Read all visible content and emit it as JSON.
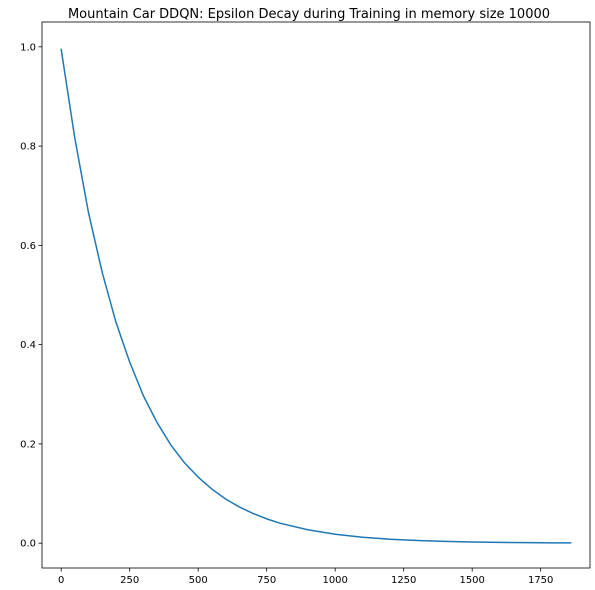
{
  "chart_data": {
    "type": "line",
    "title": "Mountain Car DDQN: Epsilon Decay during Training in memory size 10000",
    "xlabel": "",
    "ylabel": "",
    "xlim": [
      -70,
      1930
    ],
    "ylim": [
      -0.05,
      1.05
    ],
    "x_ticks": [
      0,
      250,
      500,
      750,
      1000,
      1250,
      1500,
      1750
    ],
    "x_tick_labels": [
      "0",
      "250",
      "500",
      "750",
      "1000",
      "1250",
      "1500",
      "1750"
    ],
    "y_ticks": [
      0.0,
      0.2,
      0.4,
      0.6,
      0.8,
      1.0
    ],
    "y_tick_labels": [
      "0.0",
      "0.2",
      "0.4",
      "0.6",
      "0.8",
      "1.0"
    ],
    "grid": false,
    "legend": "none",
    "line_color": "#1f77b4",
    "series": [
      {
        "x": [
          0,
          50,
          100,
          150,
          200,
          250,
          300,
          350,
          400,
          450,
          500,
          550,
          600,
          650,
          700,
          750,
          800,
          900,
          1000,
          1100,
          1200,
          1300,
          1400,
          1500,
          1600,
          1700,
          1800,
          1860
        ],
        "values": [
          0.995,
          0.815,
          0.665,
          0.545,
          0.445,
          0.365,
          0.297,
          0.243,
          0.198,
          0.162,
          0.133,
          0.109,
          0.089,
          0.073,
          0.06,
          0.049,
          0.04,
          0.027,
          0.018,
          0.012,
          0.008,
          0.0055,
          0.0037,
          0.0025,
          0.0016,
          0.0011,
          0.0007,
          0.0005
        ]
      }
    ]
  }
}
